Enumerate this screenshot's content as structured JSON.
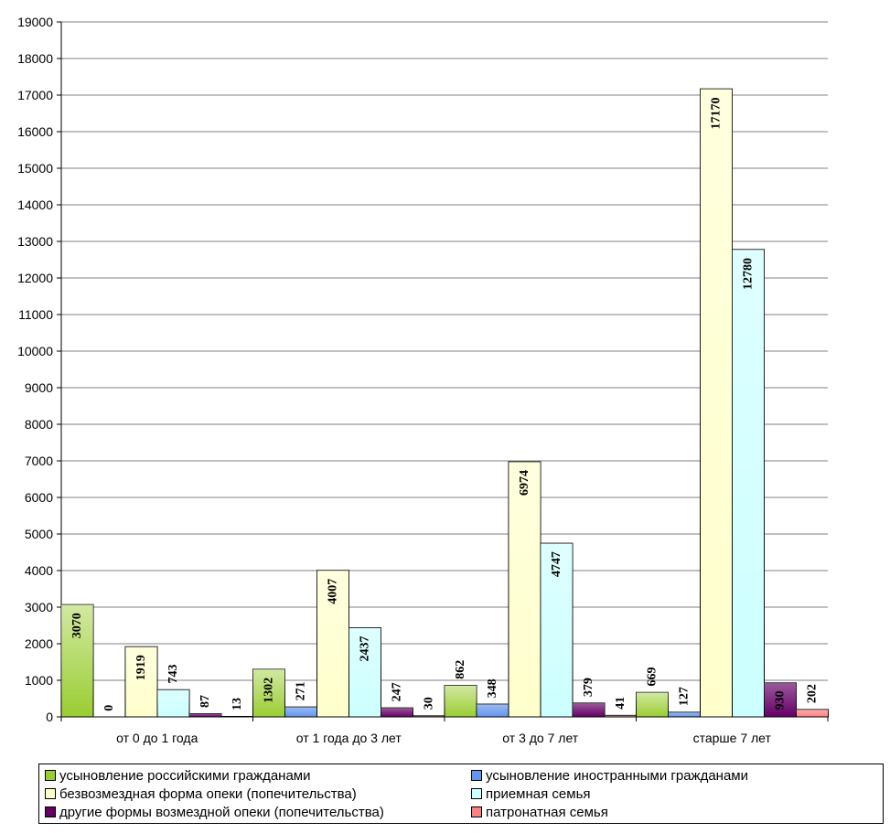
{
  "chart_data": {
    "type": "bar",
    "categories": [
      "от 0 до 1 года",
      "от 1 года до 3 лет",
      "от 3 до 7 лет",
      "старше 7 лет"
    ],
    "series": [
      {
        "name": "усыновление российскими гражданами",
        "color": "#9ACD32",
        "values": [
          3070,
          1302,
          862,
          669
        ]
      },
      {
        "name": "усыновление иностранными гражданами",
        "color": "#6495ED",
        "values": [
          0,
          271,
          348,
          127
        ]
      },
      {
        "name": "безвозмездная форма опеки (попечительства)",
        "color": "#FFFFCC",
        "values": [
          1919,
          4007,
          6974,
          17170
        ]
      },
      {
        "name": "приемная семья",
        "color": "#CCFFFF",
        "values": [
          743,
          2437,
          4747,
          12780
        ]
      },
      {
        "name": "другие формы возмездной опеки (попечительства)",
        "color": "#660066",
        "values": [
          87,
          247,
          379,
          930
        ]
      },
      {
        "name": "патронатная семья",
        "color": "#FF8080",
        "values": [
          13,
          30,
          41,
          202
        ]
      }
    ],
    "ylim": [
      0,
      19000
    ],
    "ytick_step": 1000,
    "grid": true,
    "legend_position": "bottom"
  }
}
